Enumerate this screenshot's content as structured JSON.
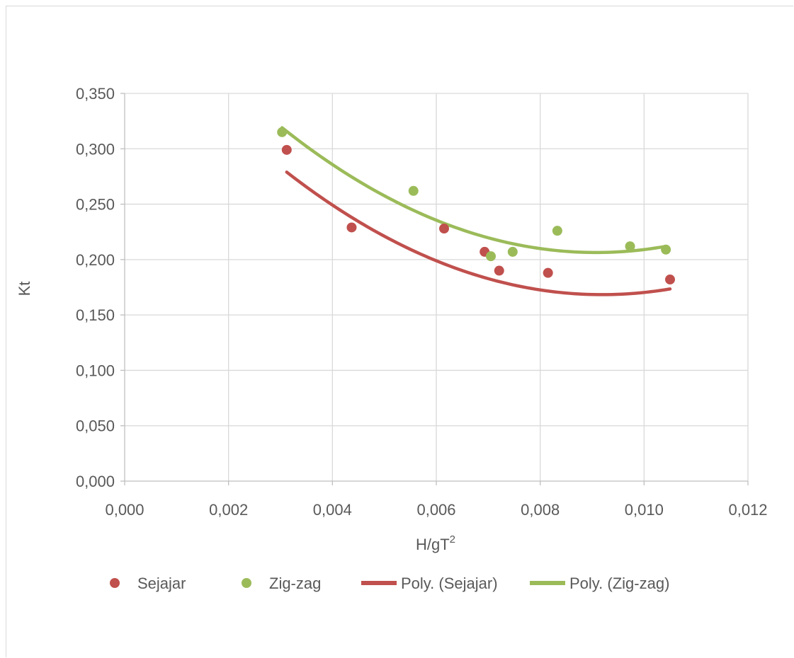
{
  "chart_data": {
    "type": "scatter",
    "title": "",
    "xlabel": "H/gT",
    "xlabel_sup": "2",
    "ylabel": "Kt",
    "xlim": [
      0,
      0.012
    ],
    "ylim": [
      0,
      0.35
    ],
    "x_ticks": [
      "0,000",
      "0,002",
      "0,004",
      "0,006",
      "0,008",
      "0,010",
      "0,012"
    ],
    "y_ticks": [
      "0,000",
      "0,050",
      "0,100",
      "0,150",
      "0,200",
      "0,250",
      "0,300",
      "0,350"
    ],
    "x_tick_values": [
      0,
      0.002,
      0.004,
      0.006,
      0.008,
      0.01,
      0.012
    ],
    "y_tick_values": [
      0,
      0.05,
      0.1,
      0.15,
      0.2,
      0.25,
      0.3,
      0.35
    ],
    "grid": true,
    "legend_position": "bottom",
    "series": [
      {
        "name": "Sejajar",
        "kind": "points",
        "color": "#c0504d",
        "points": [
          [
            0.00312,
            0.299
          ],
          [
            0.00437,
            0.229
          ],
          [
            0.00615,
            0.228
          ],
          [
            0.00693,
            0.207
          ],
          [
            0.00721,
            0.19
          ],
          [
            0.00815,
            0.188
          ],
          [
            0.0105,
            0.182
          ]
        ]
      },
      {
        "name": "Zig-zag",
        "kind": "points",
        "color": "#9bbb59",
        "points": [
          [
            0.00303,
            0.315
          ],
          [
            0.00556,
            0.262
          ],
          [
            0.00705,
            0.203
          ],
          [
            0.00747,
            0.207
          ],
          [
            0.00833,
            0.226
          ],
          [
            0.00973,
            0.212
          ],
          [
            0.01042,
            0.209
          ]
        ]
      },
      {
        "name": "Poly. (Sejajar)",
        "kind": "trendline",
        "color": "#c0504d",
        "coefficients": [
          0.4218,
          -55.15,
          3000
        ],
        "x_range": [
          0.00312,
          0.0105
        ]
      },
      {
        "name": "Poly. (Zig-zag)",
        "kind": "trendline",
        "color": "#9bbb59",
        "coefficients": [
          0.4603,
          -55.96,
          3083
        ],
        "x_range": [
          0.00303,
          0.01042
        ]
      }
    ]
  }
}
